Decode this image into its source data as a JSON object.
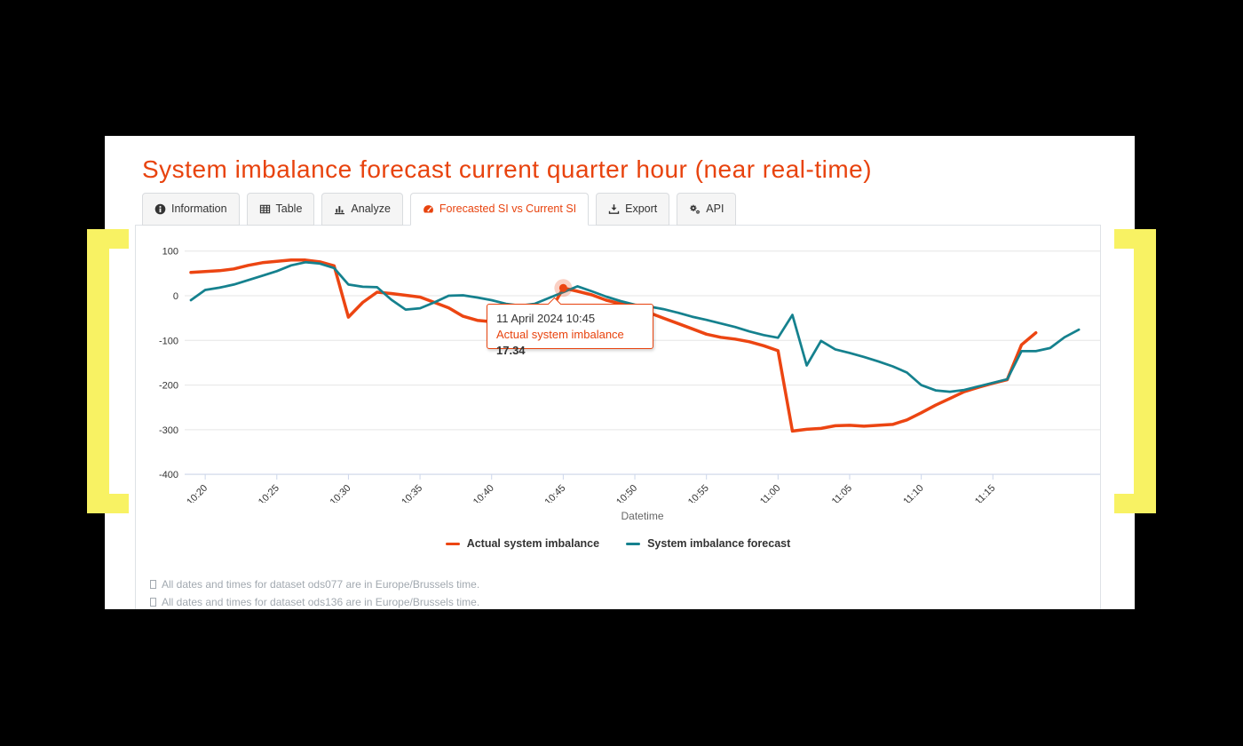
{
  "page": {
    "title": "System imbalance forecast current quarter hour (near real-time)"
  },
  "colors": {
    "accent": "#e8430e",
    "actual_line": "#ec4512",
    "forecast_line": "#15818e",
    "highlight_yellow": "#f8f263",
    "grid": "#e6e6e6",
    "axis": "#ccd6eb",
    "text_dark": "#333333",
    "text_muted": "#666666",
    "note_gray": "#a2a9b0"
  },
  "tabs": [
    {
      "label": "Information",
      "icon": "info-icon",
      "active": false
    },
    {
      "label": "Table",
      "icon": "table-icon",
      "active": false
    },
    {
      "label": "Analyze",
      "icon": "analyze-icon",
      "active": false
    },
    {
      "label": "Forecasted SI vs Current SI",
      "icon": "gauge-icon",
      "active": true
    },
    {
      "label": "Export",
      "icon": "export-icon",
      "active": false
    },
    {
      "label": "API",
      "icon": "cogs-icon",
      "active": false
    }
  ],
  "tooltip": {
    "datetime": "11 April 2024 10:45",
    "series_label": "Actual system imbalance",
    "value": "17.34"
  },
  "notes": [
    "All dates and times for dataset ods077 are in Europe/Brussels time.",
    "All dates and times for dataset ods136 are in Europe/Brussels time."
  ],
  "chart_data": {
    "type": "line",
    "title": "",
    "xlabel": "Datetime",
    "ylabel": "",
    "ylim": [
      -400,
      100
    ],
    "yticks": [
      100,
      0,
      -100,
      -200,
      -300,
      -400
    ],
    "grid": true,
    "legend_position": "bottom",
    "x_times": [
      "10:19",
      "10:20",
      "10:21",
      "10:22",
      "10:23",
      "10:24",
      "10:25",
      "10:26",
      "10:27",
      "10:28",
      "10:29",
      "10:30",
      "10:31",
      "10:32",
      "10:33",
      "10:34",
      "10:35",
      "10:36",
      "10:37",
      "10:38",
      "10:39",
      "10:40",
      "10:41",
      "10:42",
      "10:43",
      "10:44",
      "10:45",
      "10:46",
      "10:47",
      "10:48",
      "10:49",
      "10:50",
      "10:51",
      "10:52",
      "10:53",
      "10:54",
      "10:55",
      "10:56",
      "10:57",
      "10:58",
      "10:59",
      "11:00",
      "11:01",
      "11:02",
      "11:03",
      "11:04",
      "11:05",
      "11:06",
      "11:07",
      "11:08",
      "11:09",
      "11:10",
      "11:11",
      "11:12",
      "11:13",
      "11:14",
      "11:15",
      "11:16",
      "11:17",
      "11:18",
      "11:19",
      "11:20",
      "11:21"
    ],
    "x_tick_indexes": [
      1,
      6,
      11,
      16,
      21,
      26,
      31,
      36,
      41,
      46,
      51,
      56
    ],
    "x_tick_labels": [
      "10:20",
      "10:25",
      "10:30",
      "10:35",
      "10:40",
      "10:45",
      "10:50",
      "10:55",
      "11:00",
      "11:05",
      "11:10",
      "11:15"
    ],
    "series": [
      {
        "name": "Actual system imbalance",
        "color": "#ec4512",
        "values": [
          52,
          54,
          56,
          60,
          68,
          74,
          77,
          80,
          80,
          76,
          67,
          -48,
          -15,
          8,
          5,
          1,
          -3,
          -15,
          -27,
          -46,
          -55,
          -58,
          -58,
          -55,
          -50,
          -40,
          17.34,
          10,
          2,
          -10,
          -18,
          -25,
          -38,
          -50,
          -62,
          -74,
          -86,
          -93,
          -97,
          -103,
          -112,
          -123,
          -303,
          -299,
          -297,
          -291,
          -290,
          -292,
          -290,
          -288,
          -278,
          -262,
          -245,
          -230,
          -215,
          -205,
          -196,
          -188,
          -110,
          -83
        ]
      },
      {
        "name": "System imbalance forecast",
        "color": "#15818e",
        "values": [
          -10,
          13,
          18,
          25,
          35,
          45,
          55,
          68,
          75,
          72,
          62,
          25,
          20,
          19,
          -9,
          -31,
          -28,
          -15,
          0,
          1,
          -4,
          -10,
          -18,
          -22,
          -18,
          -5,
          8,
          21,
          10,
          -2,
          -12,
          -20,
          -24,
          -30,
          -38,
          -47,
          -54,
          -62,
          -70,
          -80,
          -88,
          -94,
          -43,
          -156,
          -101,
          -120,
          -128,
          -137,
          -147,
          -158,
          -172,
          -200,
          -212,
          -215,
          -211,
          -203,
          -195,
          -187,
          -124,
          -124,
          -117,
          -93,
          -76
        ]
      }
    ],
    "marker": {
      "series": "Actual system imbalance",
      "time": "10:45",
      "index": 26,
      "value": 17.34
    }
  }
}
